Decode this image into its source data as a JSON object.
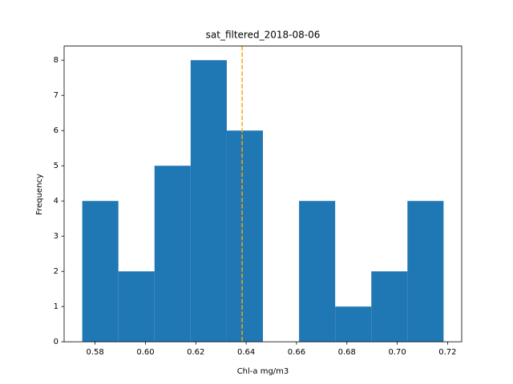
{
  "chart_data": {
    "type": "histogram",
    "title": "sat_filtered_2018-08-06",
    "xlabel": "Chl-a mg/m3",
    "ylabel": "Frequency",
    "bins": [
      0.5749,
      0.58925,
      0.6036,
      0.61795,
      0.6323,
      0.64665,
      0.661,
      0.67535,
      0.6897,
      0.70405,
      0.7184
    ],
    "values": [
      4,
      2,
      5,
      8,
      6,
      0,
      4,
      1,
      2,
      4
    ],
    "color": "#1f77b4",
    "xlim": [
      0.5677,
      0.7256
    ],
    "xticks": [
      0.58,
      {
        "value": 0.6,
        "label": "0.60"
      },
      0.62,
      0.64,
      0.66,
      0.68,
      {
        "value": 0.7,
        "label": "0.70"
      },
      0.72
    ],
    "ylim": [
      0,
      8.4
    ],
    "yticks": [
      0,
      1,
      2,
      3,
      4,
      5,
      6,
      7,
      8
    ],
    "vline": {
      "value": 0.6384,
      "color": "orange"
    }
  }
}
